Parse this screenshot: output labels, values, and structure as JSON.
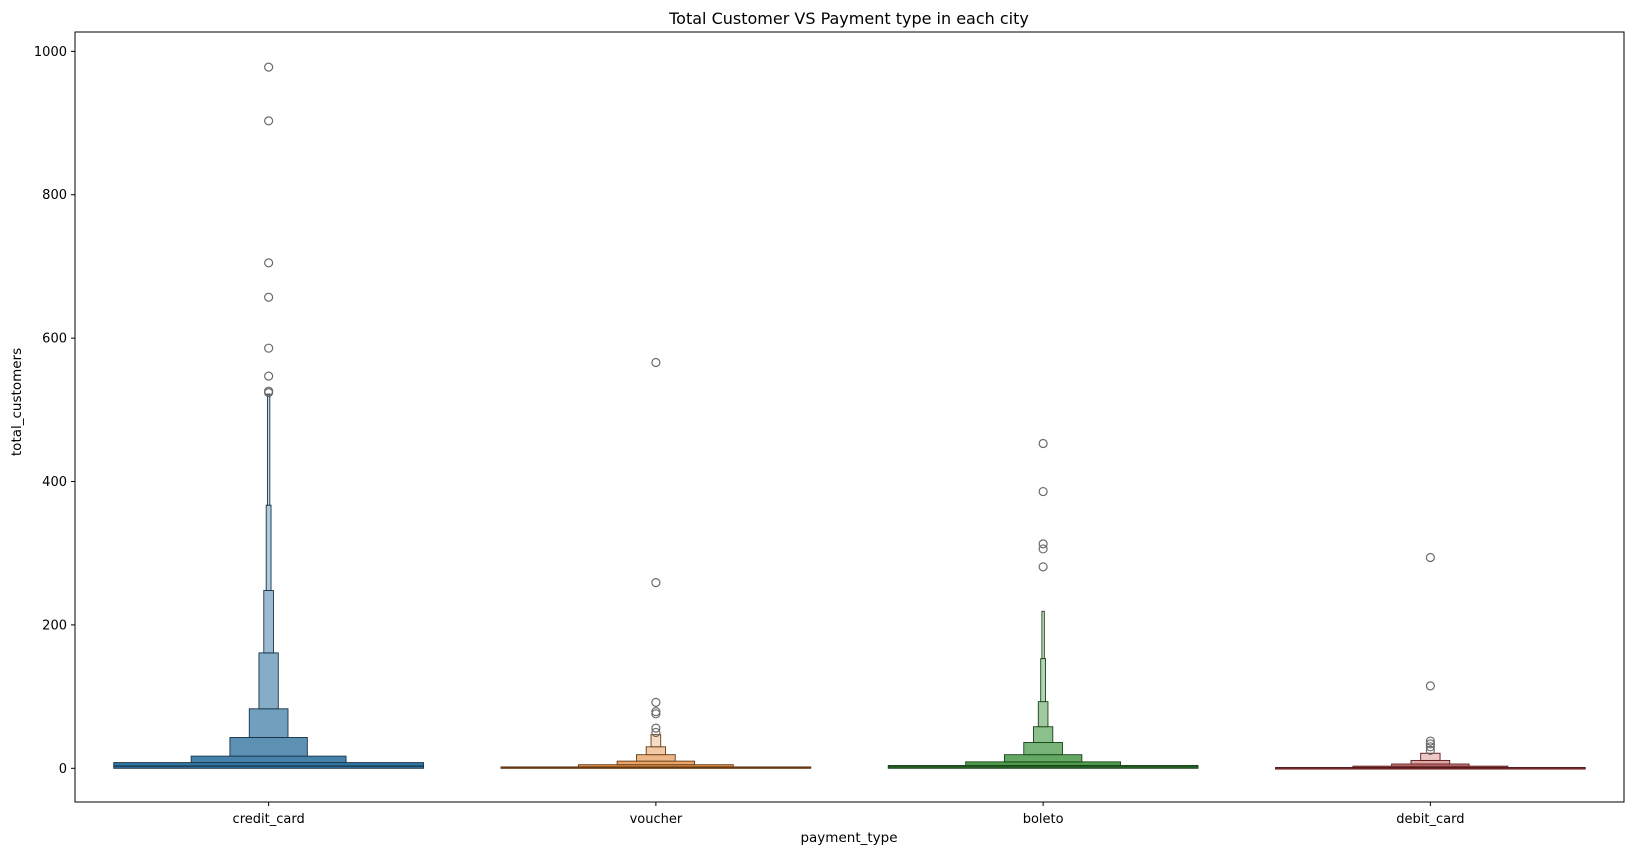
{
  "chart_data": {
    "type": "boxenplot",
    "title": "Total Customer VS Payment type in each city",
    "xlabel": "payment_type",
    "ylabel": "total_customers",
    "ylim": [
      -47,
      1027
    ],
    "yticks": [
      0,
      200,
      400,
      600,
      800,
      1000
    ],
    "grid": false,
    "categories": [
      "credit_card",
      "voucher",
      "boleto",
      "debit_card"
    ],
    "colors": [
      "#3274a1",
      "#e1812c",
      "#3a923a",
      "#c03d3e"
    ],
    "boxes": [
      [
        {
          "width_frac": 0.8,
          "low": 0,
          "high": 8
        },
        {
          "width_frac": 0.4,
          "low": 8,
          "high": 17
        },
        {
          "width_frac": 0.2,
          "low": 17,
          "high": 43
        },
        {
          "width_frac": 0.1,
          "low": 43,
          "high": 83
        },
        {
          "width_frac": 0.05,
          "low": 83,
          "high": 161
        },
        {
          "width_frac": 0.025,
          "low": 161,
          "high": 248
        },
        {
          "width_frac": 0.0125,
          "low": 248,
          "high": 367
        },
        {
          "width_frac": 0.00625,
          "low": 367,
          "high": 522
        }
      ],
      [
        {
          "width_frac": 0.8,
          "low": 0,
          "high": 2
        },
        {
          "width_frac": 0.4,
          "low": 2,
          "high": 5
        },
        {
          "width_frac": 0.2,
          "low": 5,
          "high": 10
        },
        {
          "width_frac": 0.1,
          "low": 10,
          "high": 19
        },
        {
          "width_frac": 0.05,
          "low": 19,
          "high": 30
        },
        {
          "width_frac": 0.025,
          "low": 30,
          "high": 47
        }
      ],
      [
        {
          "width_frac": 0.8,
          "low": 0,
          "high": 4
        },
        {
          "width_frac": 0.4,
          "low": 4,
          "high": 9
        },
        {
          "width_frac": 0.2,
          "low": 9,
          "high": 19
        },
        {
          "width_frac": 0.1,
          "low": 19,
          "high": 36
        },
        {
          "width_frac": 0.05,
          "low": 36,
          "high": 58
        },
        {
          "width_frac": 0.025,
          "low": 58,
          "high": 93
        },
        {
          "width_frac": 0.0125,
          "low": 93,
          "high": 153
        },
        {
          "width_frac": 0.00625,
          "low": 153,
          "high": 219
        }
      ],
      [
        {
          "width_frac": 0.8,
          "low": 0,
          "high": 1
        },
        {
          "width_frac": 0.4,
          "low": 1,
          "high": 3
        },
        {
          "width_frac": 0.2,
          "low": 3,
          "high": 6
        },
        {
          "width_frac": 0.1,
          "low": 6,
          "high": 11
        },
        {
          "width_frac": 0.05,
          "low": 11,
          "high": 21
        }
      ]
    ],
    "medians": [
      3,
      1,
      2,
      1
    ],
    "outliers": [
      [
        978,
        903,
        705,
        657,
        586,
        547,
        526,
        524
      ],
      [
        566,
        259,
        92,
        79,
        76,
        56,
        50
      ],
      [
        453,
        386,
        313,
        306,
        281
      ],
      [
        294,
        115,
        38,
        34,
        30,
        25
      ]
    ]
  }
}
